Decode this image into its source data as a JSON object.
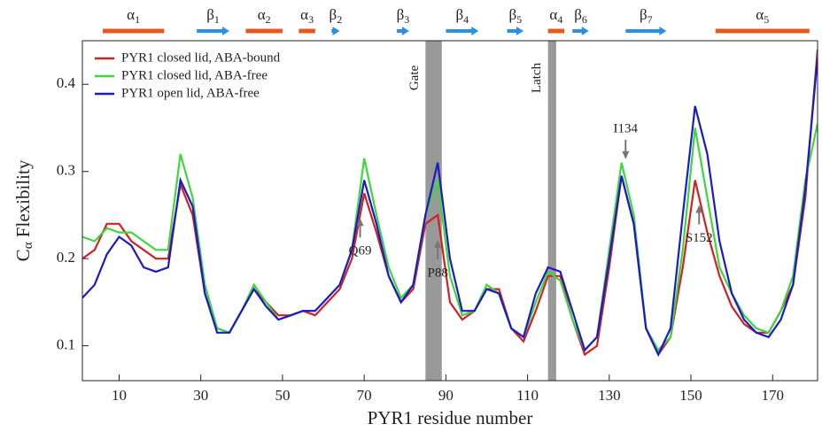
{
  "chart_data": {
    "type": "line",
    "x_label": "PYR1 residue number",
    "y_label": {
      "main": "C",
      "sub": "α",
      "rest": " Flexibility"
    },
    "xlim": [
      1,
      181
    ],
    "ylim": [
      0.06,
      0.45
    ],
    "xticks": [
      10,
      30,
      50,
      70,
      90,
      110,
      130,
      150,
      170
    ],
    "yticks": [
      0.1,
      0.2,
      0.3,
      0.4
    ],
    "legend": "upper left",
    "x": [
      1,
      4,
      7,
      10,
      13,
      16,
      19,
      22,
      25,
      28,
      31,
      34,
      37,
      40,
      43,
      46,
      49,
      52,
      55,
      58,
      61,
      64,
      67,
      70,
      73,
      76,
      79,
      82,
      85,
      88,
      91,
      94,
      97,
      100,
      103,
      106,
      109,
      112,
      115,
      118,
      121,
      124,
      127,
      130,
      133,
      136,
      139,
      142,
      145,
      148,
      151,
      154,
      157,
      160,
      163,
      166,
      169,
      172,
      175,
      178,
      181
    ],
    "series": [
      {
        "name": "PYR1 closed lid, ABA-bound",
        "color": "#d42020",
        "values": [
          0.2,
          0.21,
          0.24,
          0.24,
          0.22,
          0.21,
          0.2,
          0.2,
          0.285,
          0.25,
          0.16,
          0.12,
          0.115,
          0.14,
          0.165,
          0.15,
          0.135,
          0.135,
          0.14,
          0.135,
          0.15,
          0.165,
          0.2,
          0.275,
          0.23,
          0.18,
          0.15,
          0.165,
          0.24,
          0.25,
          0.15,
          0.13,
          0.14,
          0.165,
          0.165,
          0.12,
          0.105,
          0.14,
          0.18,
          0.18,
          0.13,
          0.09,
          0.1,
          0.19,
          0.295,
          0.24,
          0.12,
          0.09,
          0.11,
          0.19,
          0.29,
          0.23,
          0.18,
          0.145,
          0.125,
          0.115,
          0.115,
          0.14,
          0.17,
          0.27,
          0.44
        ]
      },
      {
        "name": "PYR1 closed lid, ABA-free",
        "color": "#3ed63e",
        "values": [
          0.225,
          0.22,
          0.235,
          0.23,
          0.23,
          0.22,
          0.21,
          0.21,
          0.32,
          0.27,
          0.17,
          0.12,
          0.115,
          0.14,
          0.17,
          0.15,
          0.13,
          0.135,
          0.14,
          0.14,
          0.155,
          0.17,
          0.21,
          0.315,
          0.25,
          0.19,
          0.155,
          0.17,
          0.25,
          0.29,
          0.18,
          0.135,
          0.14,
          0.17,
          0.16,
          0.12,
          0.11,
          0.15,
          0.185,
          0.175,
          0.13,
          0.095,
          0.11,
          0.21,
          0.31,
          0.25,
          0.12,
          0.095,
          0.11,
          0.21,
          0.35,
          0.27,
          0.19,
          0.16,
          0.135,
          0.12,
          0.115,
          0.14,
          0.18,
          0.29,
          0.355
        ]
      },
      {
        "name": "PYR1 open lid, ABA-free",
        "color": "#1a1ac8",
        "values": [
          0.155,
          0.17,
          0.205,
          0.225,
          0.215,
          0.19,
          0.185,
          0.19,
          0.29,
          0.26,
          0.16,
          0.115,
          0.115,
          0.14,
          0.165,
          0.145,
          0.13,
          0.135,
          0.14,
          0.14,
          0.155,
          0.17,
          0.21,
          0.29,
          0.24,
          0.18,
          0.15,
          0.17,
          0.25,
          0.31,
          0.2,
          0.14,
          0.14,
          0.165,
          0.16,
          0.12,
          0.11,
          0.16,
          0.19,
          0.185,
          0.14,
          0.095,
          0.11,
          0.2,
          0.295,
          0.24,
          0.12,
          0.09,
          0.12,
          0.25,
          0.375,
          0.32,
          0.22,
          0.16,
          0.13,
          0.115,
          0.11,
          0.13,
          0.17,
          0.28,
          0.43
        ]
      }
    ],
    "structures": [
      {
        "label": "α",
        "sub": "1",
        "kind": "helix",
        "span": [
          6,
          21
        ]
      },
      {
        "label": "β",
        "sub": "1",
        "kind": "strand",
        "span": [
          29,
          37
        ]
      },
      {
        "label": "α",
        "sub": "2",
        "kind": "helix",
        "span": [
          41,
          50
        ]
      },
      {
        "label": "α",
        "sub": "3",
        "kind": "helix",
        "span": [
          54,
          58
        ]
      },
      {
        "label": "β",
        "sub": "2",
        "kind": "strand",
        "span": [
          62,
          64
        ]
      },
      {
        "label": "β",
        "sub": "3",
        "kind": "strand",
        "span": [
          78,
          81
        ]
      },
      {
        "label": "β",
        "sub": "4",
        "kind": "strand",
        "span": [
          90,
          98
        ]
      },
      {
        "label": "β",
        "sub": "5",
        "kind": "strand",
        "span": [
          105,
          109
        ]
      },
      {
        "label": "α",
        "sub": "4",
        "kind": "helix",
        "span": [
          115,
          119
        ]
      },
      {
        "label": "β",
        "sub": "6",
        "kind": "strand",
        "span": [
          121,
          125
        ]
      },
      {
        "label": "β",
        "sub": "7",
        "kind": "strand",
        "span": [
          134,
          144
        ]
      },
      {
        "label": "α",
        "sub": "5",
        "kind": "helix",
        "span": [
          156,
          179
        ]
      }
    ],
    "regions": [
      {
        "label": "Gate",
        "span": [
          85,
          89
        ]
      },
      {
        "label": "Latch",
        "span": [
          115,
          117
        ]
      }
    ],
    "annotations": [
      {
        "text": "Q69",
        "x": 69,
        "direction": "up"
      },
      {
        "text": "P88",
        "x": 88,
        "direction": "up"
      },
      {
        "text": "I134",
        "x": 134,
        "direction": "down"
      },
      {
        "text": "S152",
        "x": 152,
        "direction": "up"
      }
    ]
  }
}
